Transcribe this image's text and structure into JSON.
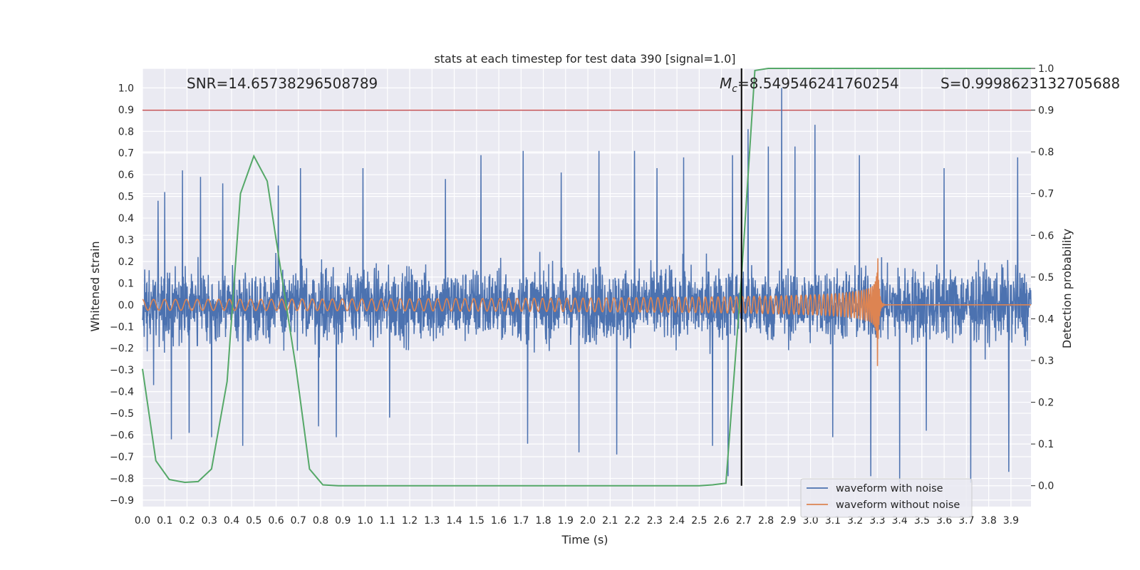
{
  "chart_data": {
    "type": "line",
    "title": "stats at each timestep for test data 390 [signal=1.0]",
    "xlabel": "Time (s)",
    "ylabel": "Whitened strain",
    "y2label": "Detection probability",
    "xlim": [
      0.0,
      3.99
    ],
    "ylim": [
      -0.93,
      1.09
    ],
    "y2lim": [
      -0.05,
      1.0
    ],
    "x_ticks": [
      0.0,
      0.1,
      0.2,
      0.3,
      0.4,
      0.5,
      0.6,
      0.7,
      0.8,
      0.9,
      1.0,
      1.1,
      1.2,
      1.3,
      1.4,
      1.5,
      1.6,
      1.7,
      1.8,
      1.9,
      2.0,
      2.1,
      2.2,
      2.3,
      2.4,
      2.5,
      2.6,
      2.7,
      2.8,
      2.9,
      3.0,
      3.1,
      3.2,
      3.3,
      3.4,
      3.5,
      3.6,
      3.7,
      3.8,
      3.9
    ],
    "x_tick_labels": [
      "0.0",
      "0.1",
      "0.2",
      "0.3",
      "0.4",
      "0.5",
      "0.6",
      "0.7",
      "0.8",
      "0.9",
      "1.0",
      "1.1",
      "1.2",
      "1.3",
      "1.4",
      "1.5",
      "1.6",
      "1.7",
      "1.8",
      "1.9",
      "2.0",
      "2.1",
      "2.2",
      "2.3",
      "2.4",
      "2.5",
      "2.6",
      "2.7",
      "2.8",
      "2.9",
      "3.0",
      "3.1",
      "3.2",
      "3.3",
      "3.4",
      "3.5",
      "3.6",
      "3.7",
      "3.8",
      "3.9"
    ],
    "y_ticks": [
      -0.9,
      -0.8,
      -0.7,
      -0.6,
      -0.5,
      -0.4,
      -0.3,
      -0.2,
      -0.1,
      0.0,
      0.1,
      0.2,
      0.3,
      0.4,
      0.5,
      0.6,
      0.7,
      0.8,
      0.9,
      1.0
    ],
    "y_tick_labels": [
      "−0.9",
      "−0.8",
      "−0.7",
      "−0.6",
      "−0.5",
      "−0.4",
      "−0.3",
      "−0.2",
      "−0.1",
      "0.0",
      "0.1",
      "0.2",
      "0.3",
      "0.4",
      "0.5",
      "0.6",
      "0.7",
      "0.8",
      "0.9",
      "1.0"
    ],
    "y2_ticks": [
      0.0,
      0.1,
      0.2,
      0.3,
      0.4,
      0.5,
      0.6,
      0.7,
      0.8,
      0.9,
      1.0
    ],
    "y2_tick_labels": [
      "0.0",
      "0.1",
      "0.2",
      "0.3",
      "0.4",
      "0.5",
      "0.6",
      "0.7",
      "0.8",
      "0.9",
      "1.0"
    ],
    "grid": true,
    "legend_position": "lower-right",
    "annotations": {
      "snr": "SNR=14.65738296508789",
      "mc_symbol": "M",
      "mc_subscript": "c",
      "mc_value": "=8.549546241760254",
      "s": "S=0.9998623132705688"
    },
    "threshold_line": {
      "y2": 0.9,
      "color": "#c44e52"
    },
    "vertical_marker": {
      "x": 2.69,
      "y2_range": [
        0.0,
        1.0
      ],
      "color": "#000000"
    },
    "series": [
      {
        "name": "waveform with noise",
        "color": "#4c72b0",
        "axis": "left",
        "kind": "noise",
        "sigma": 0.12,
        "spikes": [
          {
            "x": 0.05,
            "y": -0.37
          },
          {
            "x": 0.07,
            "y": 0.48
          },
          {
            "x": 0.1,
            "y": 0.52
          },
          {
            "x": 0.13,
            "y": -0.62
          },
          {
            "x": 0.18,
            "y": 0.62
          },
          {
            "x": 0.21,
            "y": -0.59
          },
          {
            "x": 0.26,
            "y": 0.59
          },
          {
            "x": 0.31,
            "y": -0.61
          },
          {
            "x": 0.36,
            "y": 0.56
          },
          {
            "x": 0.45,
            "y": -0.65
          },
          {
            "x": 0.61,
            "y": 0.55
          },
          {
            "x": 0.71,
            "y": 0.63
          },
          {
            "x": 0.79,
            "y": -0.56
          },
          {
            "x": 0.87,
            "y": -0.61
          },
          {
            "x": 0.99,
            "y": 0.63
          },
          {
            "x": 1.11,
            "y": -0.52
          },
          {
            "x": 1.36,
            "y": 0.58
          },
          {
            "x": 1.52,
            "y": 0.69
          },
          {
            "x": 1.71,
            "y": 0.71
          },
          {
            "x": 1.73,
            "y": -0.64
          },
          {
            "x": 1.88,
            "y": 0.61
          },
          {
            "x": 1.96,
            "y": -0.68
          },
          {
            "x": 2.05,
            "y": 0.71
          },
          {
            "x": 2.13,
            "y": -0.69
          },
          {
            "x": 2.21,
            "y": 0.71
          },
          {
            "x": 2.31,
            "y": 0.63
          },
          {
            "x": 2.43,
            "y": 0.68
          },
          {
            "x": 2.56,
            "y": -0.65
          },
          {
            "x": 2.63,
            "y": -0.79
          },
          {
            "x": 2.65,
            "y": 0.69
          },
          {
            "x": 2.72,
            "y": 0.81
          },
          {
            "x": 2.81,
            "y": 0.73
          },
          {
            "x": 2.87,
            "y": 1.0
          },
          {
            "x": 2.93,
            "y": 0.73
          },
          {
            "x": 3.02,
            "y": 0.83
          },
          {
            "x": 3.1,
            "y": -0.61
          },
          {
            "x": 3.22,
            "y": 0.69
          },
          {
            "x": 3.27,
            "y": -0.79
          },
          {
            "x": 3.4,
            "y": -0.82
          },
          {
            "x": 3.52,
            "y": -0.58
          },
          {
            "x": 3.6,
            "y": 0.63
          },
          {
            "x": 3.72,
            "y": -0.82
          },
          {
            "x": 3.89,
            "y": -0.77
          },
          {
            "x": 3.93,
            "y": 0.68
          }
        ]
      },
      {
        "name": "waveform without noise",
        "color": "#dd8452",
        "axis": "left",
        "kind": "chirp",
        "merger_time": 3.3,
        "amplitude_start": 0.025,
        "amplitude_peak": 0.32,
        "frequency_start": 20
      },
      {
        "name": "detection probability",
        "color": "#55a868",
        "axis": "right",
        "kind": "line",
        "x": [
          0.0,
          0.06,
          0.12,
          0.19,
          0.25,
          0.31,
          0.38,
          0.44,
          0.5,
          0.56,
          0.62,
          0.69,
          0.75,
          0.81,
          0.88,
          0.94,
          1.0,
          1.5,
          2.0,
          2.5,
          2.56,
          2.62,
          2.69,
          2.75,
          2.81,
          3.0,
          3.5,
          3.99
        ],
        "y": [
          0.28,
          0.06,
          0.015,
          0.008,
          0.01,
          0.04,
          0.25,
          0.7,
          0.79,
          0.73,
          0.52,
          0.28,
          0.04,
          0.002,
          0.0,
          0.0,
          0.0,
          0.0,
          0.0,
          0.0,
          0.002,
          0.006,
          0.5,
          0.995,
          1.0,
          1.0,
          1.0,
          1.0
        ]
      }
    ]
  }
}
